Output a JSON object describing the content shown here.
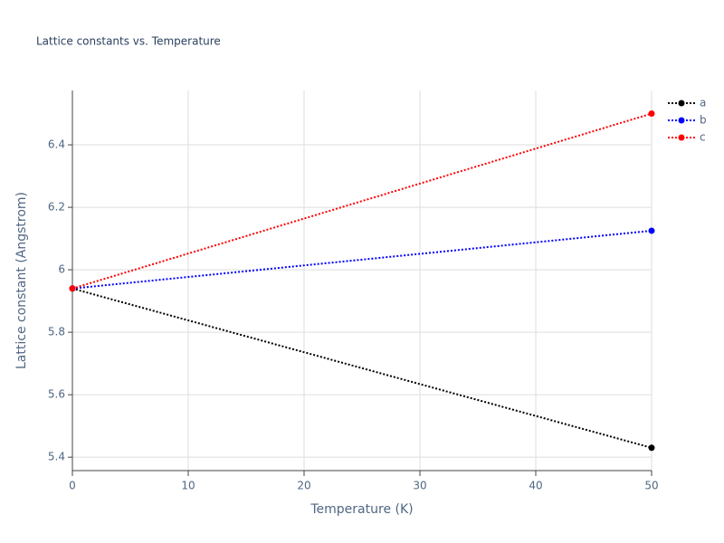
{
  "chart_data": {
    "type": "line",
    "title": "Lattice constants vs. Temperature",
    "x_label": "Temperature (K)",
    "y_label": "Lattice constant (Angstrom)",
    "x": [
      0,
      50
    ],
    "series": [
      {
        "name": "a",
        "color": "#000000",
        "values": [
          5.94,
          5.43
        ]
      },
      {
        "name": "b",
        "color": "#0000ff",
        "values": [
          5.94,
          6.125
        ]
      },
      {
        "name": "c",
        "color": "#ff0000",
        "values": [
          5.94,
          6.5
        ]
      }
    ],
    "xlim": [
      0,
      50
    ],
    "xticks": [
      0,
      10,
      20,
      30,
      40,
      50
    ],
    "ylim": [
      5.357,
      6.574
    ],
    "yticks": [
      5.4,
      5.6,
      5.8,
      6,
      6.2,
      6.4
    ],
    "grid": true,
    "legend": "top-right"
  }
}
